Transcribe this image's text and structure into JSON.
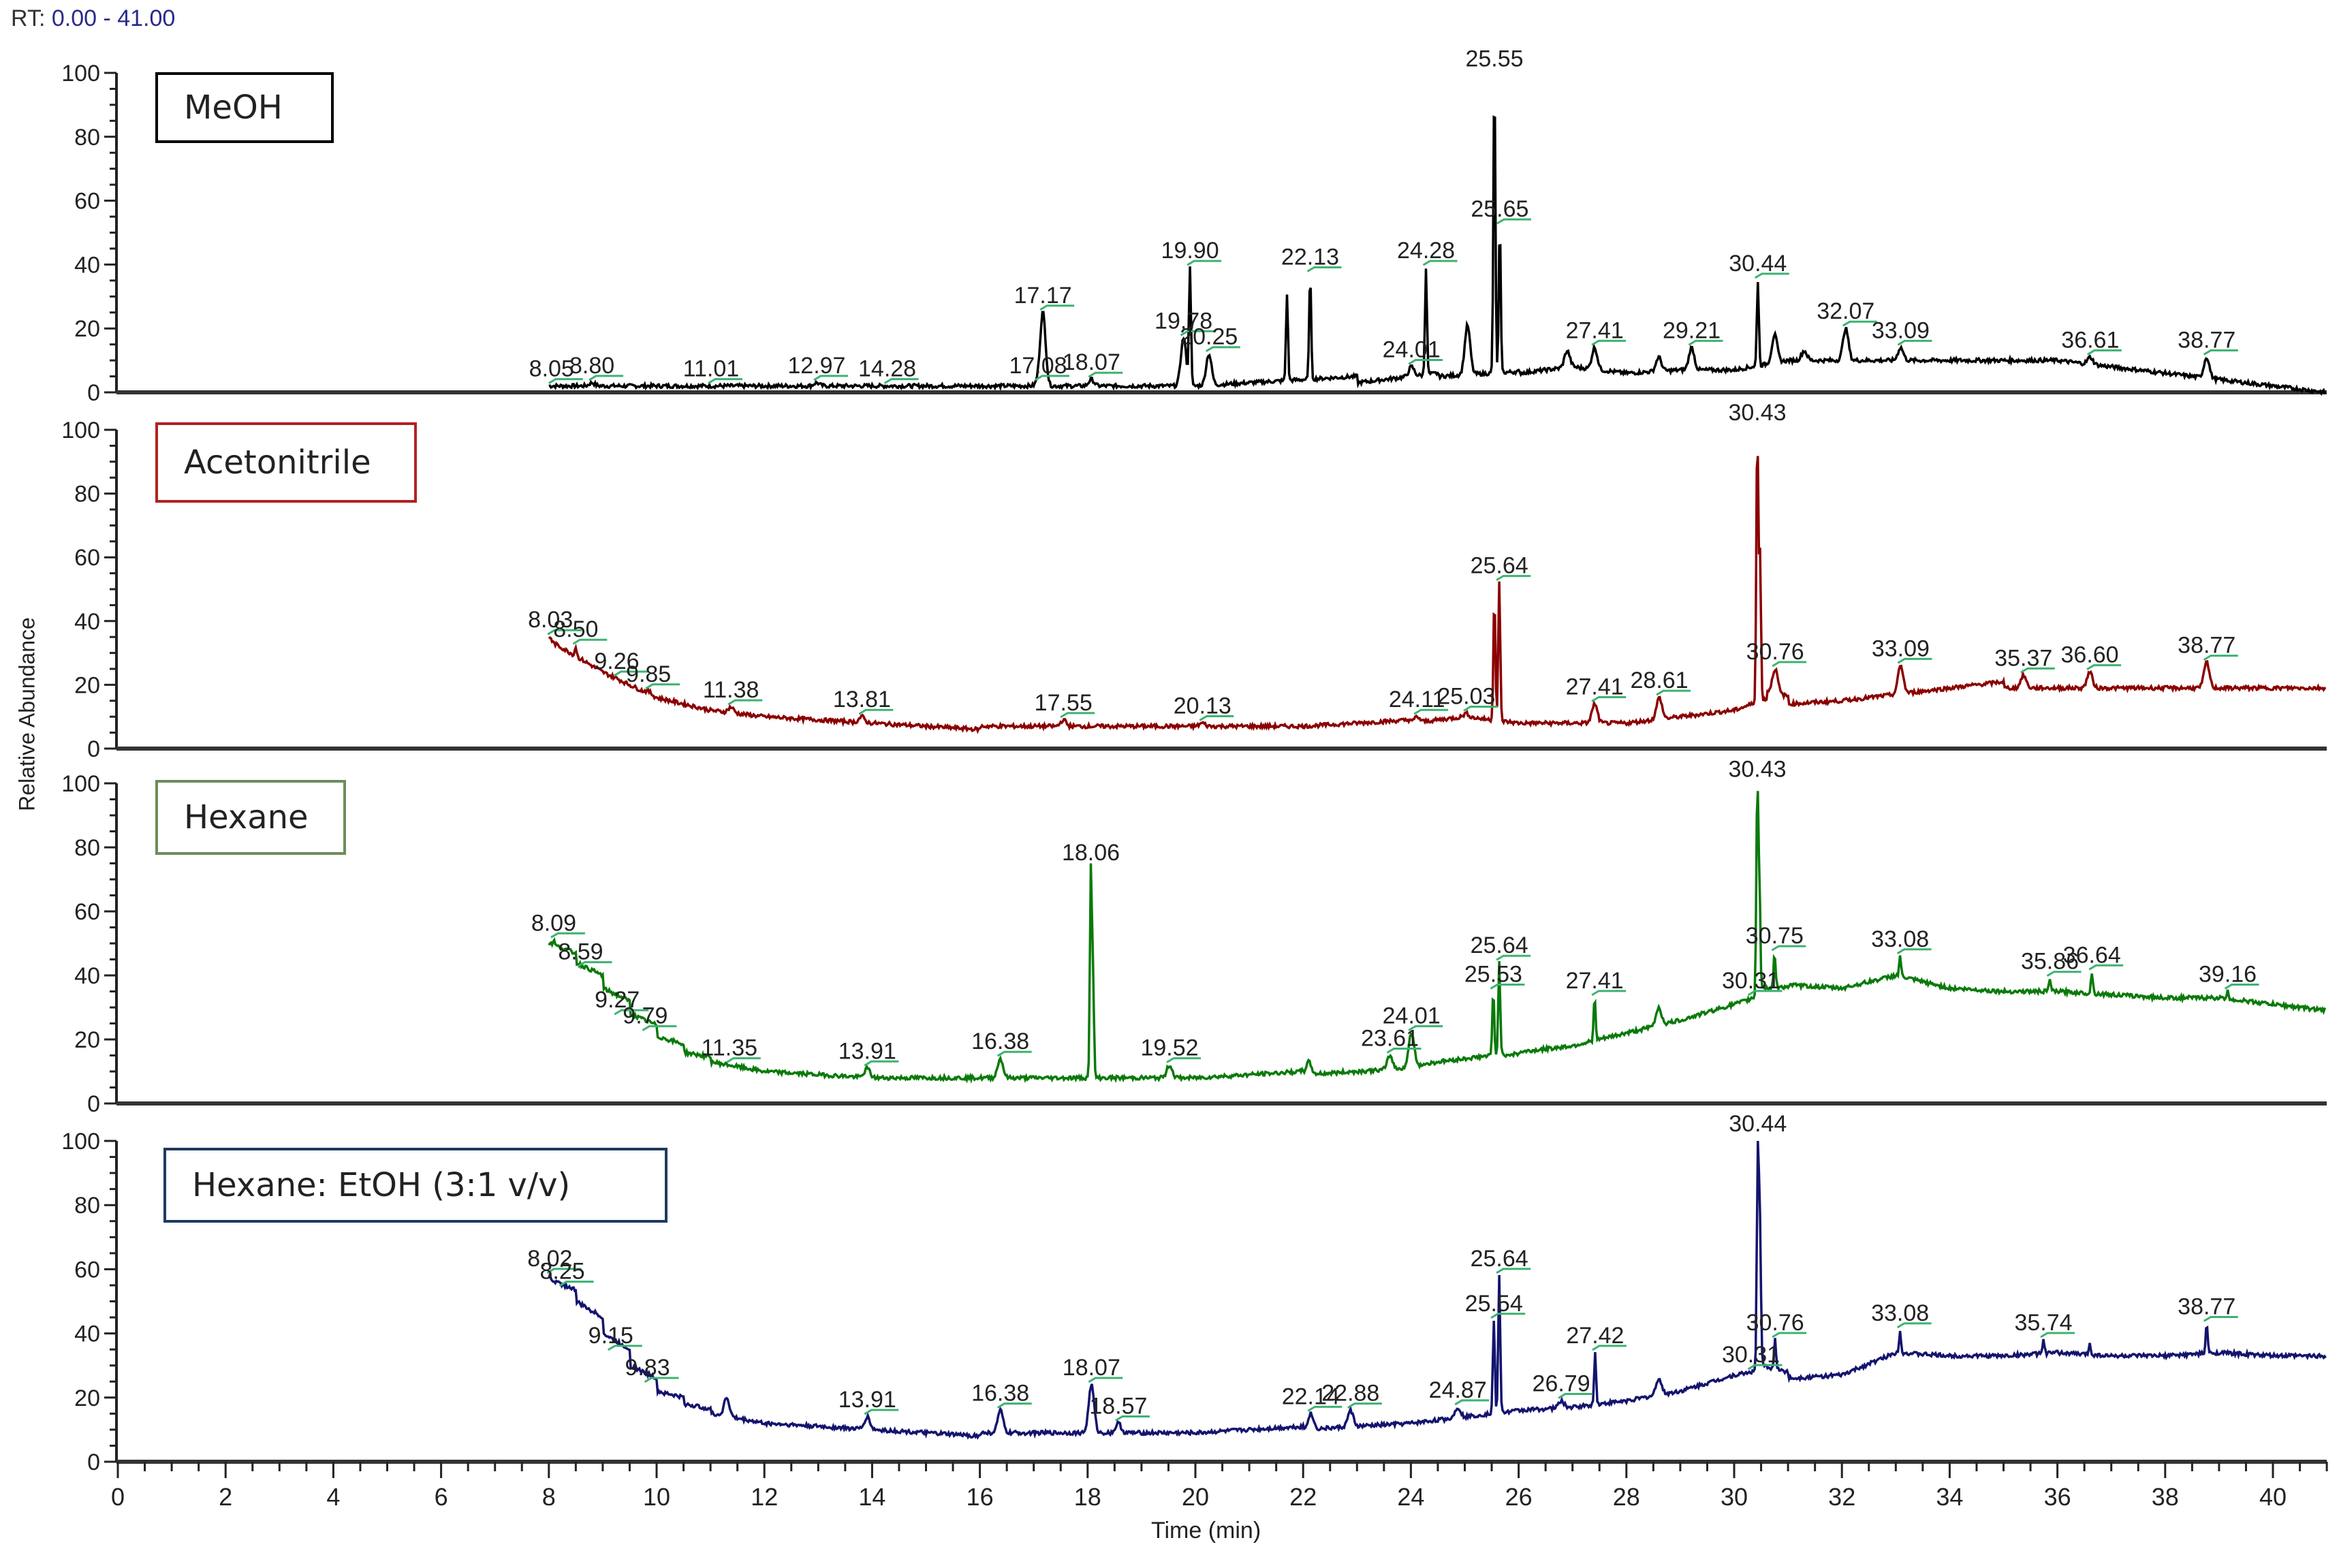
{
  "header": {
    "rt_label": "RT:",
    "rt_range": "0.00 - 41.00"
  },
  "axes": {
    "ylabel": "Relative Abundance",
    "xlabel": "Time (min)",
    "x_ticks": [
      "0",
      "2",
      "4",
      "6",
      "8",
      "10",
      "12",
      "14",
      "16",
      "18",
      "20",
      "22",
      "24",
      "26",
      "28",
      "30",
      "32",
      "34",
      "36",
      "38",
      "40"
    ],
    "y_ticks": [
      "0",
      "20",
      "40",
      "60",
      "80",
      "100"
    ]
  },
  "colors": {
    "meoh": "#000000",
    "acetonitrile": "#8b0000",
    "hexane": "#0a7a0a",
    "hexane_etoh": "#14146e",
    "annotation_bracket": "#3cb371",
    "axis": "#222222"
  },
  "chart_data": {
    "type": "line",
    "title": "RT: 0.00 - 41.00",
    "xlabel": "Time (min)",
    "ylabel": "Relative Abundance",
    "xlim": [
      0,
      41
    ],
    "ylim": [
      0,
      100
    ],
    "grid": false,
    "layout": "4 stacked chromatogram panels sharing x-axis",
    "panels": [
      {
        "name": "MeOH",
        "color": "#000000",
        "legend_border": "#000000",
        "baseline": [
          [
            8.0,
            2
          ],
          [
            12,
            2
          ],
          [
            17,
            2
          ],
          [
            20,
            2
          ],
          [
            23,
            3
          ],
          [
            24.5,
            5
          ],
          [
            26,
            6
          ],
          [
            27,
            8
          ],
          [
            28,
            6
          ],
          [
            29,
            7
          ],
          [
            30,
            7
          ],
          [
            31,
            10
          ],
          [
            33,
            10
          ],
          [
            36,
            10
          ],
          [
            41,
            8
          ]
        ],
        "peaks": [
          {
            "rt": 8.05,
            "label": "8.05",
            "height": 2
          },
          {
            "rt": 8.8,
            "label": "8.80",
            "height": 3
          },
          {
            "rt": 11.01,
            "label": "11.01",
            "height": 2
          },
          {
            "rt": 12.97,
            "label": "12.97",
            "height": 3
          },
          {
            "rt": 14.28,
            "label": "14.28",
            "height": 2
          },
          {
            "rt": 17.08,
            "label": "17.08",
            "height": 3
          },
          {
            "rt": 17.17,
            "label": "17.17",
            "height": 25
          },
          {
            "rt": 18.07,
            "label": "18.07",
            "height": 4
          },
          {
            "rt": 19.78,
            "label": "19.78",
            "height": 17
          },
          {
            "rt": 19.9,
            "label": "19.90",
            "height": 39
          },
          {
            "rt": 20.25,
            "label": "20.25",
            "height": 12
          },
          {
            "rt": 21.7,
            "label": "",
            "height": 31
          },
          {
            "rt": 22.13,
            "label": "22.13",
            "height": 37
          },
          {
            "rt": 24.01,
            "label": "24.01",
            "height": 8
          },
          {
            "rt": 24.28,
            "label": "24.28",
            "height": 39
          },
          {
            "rt": 25.05,
            "label": "",
            "height": 21
          },
          {
            "rt": 25.55,
            "label": "25.55",
            "height": 99
          },
          {
            "rt": 25.65,
            "label": "25.65",
            "height": 52
          },
          {
            "rt": 26.9,
            "label": "",
            "height": 13
          },
          {
            "rt": 27.41,
            "label": "27.41",
            "height": 14
          },
          {
            "rt": 28.6,
            "label": "",
            "height": 11
          },
          {
            "rt": 29.21,
            "label": "29.21",
            "height": 14
          },
          {
            "rt": 30.44,
            "label": "30.44",
            "height": 35
          },
          {
            "rt": 30.75,
            "label": "",
            "height": 18
          },
          {
            "rt": 31.3,
            "label": "",
            "height": 13
          },
          {
            "rt": 32.07,
            "label": "32.07",
            "height": 20
          },
          {
            "rt": 33.09,
            "label": "33.09",
            "height": 14
          },
          {
            "rt": 36.61,
            "label": "36.61",
            "height": 11
          },
          {
            "rt": 38.77,
            "label": "38.77",
            "height": 11
          }
        ]
      },
      {
        "name": "Acetonitrile",
        "color": "#8b0000",
        "legend_border": "#b22222",
        "baseline": [
          [
            8.0,
            34
          ],
          [
            9,
            24
          ],
          [
            10,
            16
          ],
          [
            11,
            12
          ],
          [
            12,
            10
          ],
          [
            13,
            9
          ],
          [
            14,
            8
          ],
          [
            16,
            7
          ],
          [
            20,
            7
          ],
          [
            22,
            7
          ],
          [
            24,
            8
          ],
          [
            25,
            10
          ],
          [
            26,
            8
          ],
          [
            28,
            8
          ],
          [
            29,
            10
          ],
          [
            30,
            12
          ],
          [
            30.6,
            18
          ],
          [
            31,
            14
          ],
          [
            32,
            15
          ],
          [
            33,
            17
          ],
          [
            35,
            19
          ],
          [
            38,
            19
          ],
          [
            41,
            19
          ]
        ],
        "peaks": [
          {
            "rt": 8.03,
            "label": "8.03",
            "height": 35
          },
          {
            "rt": 8.5,
            "label": "8.50",
            "height": 32
          },
          {
            "rt": 9.26,
            "label": "9.26",
            "height": 22
          },
          {
            "rt": 9.85,
            "label": "9.85",
            "height": 18
          },
          {
            "rt": 11.38,
            "label": "11.38",
            "height": 13
          },
          {
            "rt": 13.81,
            "label": "13.81",
            "height": 10
          },
          {
            "rt": 17.55,
            "label": "17.55",
            "height": 9
          },
          {
            "rt": 20.13,
            "label": "20.13",
            "height": 8
          },
          {
            "rt": 24.11,
            "label": "24.11",
            "height": 10
          },
          {
            "rt": 25.03,
            "label": "25.03",
            "height": 11
          },
          {
            "rt": 25.55,
            "label": "",
            "height": 48
          },
          {
            "rt": 25.64,
            "label": "25.64",
            "height": 52
          },
          {
            "rt": 27.41,
            "label": "27.41",
            "height": 14
          },
          {
            "rt": 28.61,
            "label": "28.61",
            "height": 16
          },
          {
            "rt": 30.43,
            "label": "30.43",
            "height": 100
          },
          {
            "rt": 30.48,
            "label": "",
            "height": 61
          },
          {
            "rt": 30.76,
            "label": "30.76",
            "height": 25
          },
          {
            "rt": 33.09,
            "label": "33.09",
            "height": 26
          },
          {
            "rt": 35.37,
            "label": "35.37",
            "height": 23
          },
          {
            "rt": 36.6,
            "label": "36.60",
            "height": 24
          },
          {
            "rt": 38.77,
            "label": "38.77",
            "height": 27
          }
        ]
      },
      {
        "name": "Hexane",
        "color": "#0a7a0a",
        "legend_border": "#6b8e5a",
        "baseline": [
          [
            8.0,
            50
          ],
          [
            8.5,
            44
          ],
          [
            9,
            36
          ],
          [
            9.5,
            28
          ],
          [
            10,
            21
          ],
          [
            10.5,
            16
          ],
          [
            11,
            13
          ],
          [
            12,
            10
          ],
          [
            13,
            9
          ],
          [
            14,
            8
          ],
          [
            16,
            8
          ],
          [
            18,
            8
          ],
          [
            20,
            8
          ],
          [
            22,
            9
          ],
          [
            23.5,
            10
          ],
          [
            24.5,
            13
          ],
          [
            25.5,
            15
          ],
          [
            26,
            16
          ],
          [
            27,
            18
          ],
          [
            28,
            22
          ],
          [
            29,
            26
          ],
          [
            30,
            31
          ],
          [
            30.5,
            36
          ],
          [
            31,
            37
          ],
          [
            32,
            36
          ],
          [
            33,
            40
          ],
          [
            34,
            36
          ],
          [
            35,
            35
          ],
          [
            36,
            35
          ],
          [
            37,
            34
          ],
          [
            38,
            33
          ],
          [
            39,
            33
          ],
          [
            40,
            31
          ],
          [
            41,
            29
          ]
        ],
        "peaks": [
          {
            "rt": 8.09,
            "label": "8.09",
            "height": 51
          },
          {
            "rt": 8.59,
            "label": "8.59",
            "height": 42
          },
          {
            "rt": 9.27,
            "label": "9.27",
            "height": 27
          },
          {
            "rt": 9.79,
            "label": "9.79",
            "height": 22
          },
          {
            "rt": 11.35,
            "label": "11.35",
            "height": 12
          },
          {
            "rt": 13.91,
            "label": "13.91",
            "height": 11
          },
          {
            "rt": 16.38,
            "label": "16.38",
            "height": 14
          },
          {
            "rt": 18.06,
            "label": "18.06",
            "height": 73
          },
          {
            "rt": 18.1,
            "label": "",
            "height": 38
          },
          {
            "rt": 19.52,
            "label": "19.52",
            "height": 12
          },
          {
            "rt": 22.1,
            "label": "",
            "height": 13
          },
          {
            "rt": 23.61,
            "label": "23.61",
            "height": 15
          },
          {
            "rt": 24.01,
            "label": "24.01",
            "height": 22
          },
          {
            "rt": 25.53,
            "label": "25.53",
            "height": 35
          },
          {
            "rt": 25.64,
            "label": "25.64",
            "height": 44
          },
          {
            "rt": 27.41,
            "label": "27.41",
            "height": 33
          },
          {
            "rt": 28.6,
            "label": "",
            "height": 30
          },
          {
            "rt": 30.31,
            "label": "30.31",
            "height": 33
          },
          {
            "rt": 30.43,
            "label": "30.43",
            "height": 99
          },
          {
            "rt": 30.47,
            "label": "",
            "height": 66
          },
          {
            "rt": 30.75,
            "label": "30.75",
            "height": 47
          },
          {
            "rt": 33.08,
            "label": "33.08",
            "height": 46
          },
          {
            "rt": 35.86,
            "label": "35.86",
            "height": 39
          },
          {
            "rt": 36.64,
            "label": "36.64",
            "height": 41
          },
          {
            "rt": 39.16,
            "label": "39.16",
            "height": 35
          }
        ]
      },
      {
        "name": "Hexane: EtOH (3:1 v/v)",
        "color": "#14146e",
        "legend_border": "#1f3a5f",
        "baseline": [
          [
            8.0,
            57
          ],
          [
            8.5,
            50
          ],
          [
            9,
            40
          ],
          [
            9.5,
            30
          ],
          [
            10,
            22
          ],
          [
            10.5,
            18
          ],
          [
            11,
            15
          ],
          [
            12,
            12
          ],
          [
            13,
            11
          ],
          [
            14,
            10
          ],
          [
            16,
            9
          ],
          [
            18,
            9
          ],
          [
            20,
            9
          ],
          [
            22,
            10
          ],
          [
            23,
            11
          ],
          [
            24,
            12
          ],
          [
            25,
            14
          ],
          [
            26,
            16
          ],
          [
            27,
            17
          ],
          [
            28,
            19
          ],
          [
            29,
            22
          ],
          [
            30,
            27
          ],
          [
            30.5,
            30
          ],
          [
            31,
            26
          ],
          [
            32,
            27
          ],
          [
            33,
            34
          ],
          [
            34,
            33
          ],
          [
            35,
            33
          ],
          [
            36,
            34
          ],
          [
            37,
            33
          ],
          [
            38,
            33
          ],
          [
            39,
            34
          ],
          [
            40,
            33
          ],
          [
            41,
            33
          ]
        ],
        "peaks": [
          {
            "rt": 8.02,
            "label": "8.02",
            "height": 58
          },
          {
            "rt": 8.25,
            "label": "8.25",
            "height": 54
          },
          {
            "rt": 9.15,
            "label": "9.15",
            "height": 34
          },
          {
            "rt": 9.83,
            "label": "9.83",
            "height": 24
          },
          {
            "rt": 11.3,
            "label": "",
            "height": 20
          },
          {
            "rt": 13.91,
            "label": "13.91",
            "height": 14
          },
          {
            "rt": 16.38,
            "label": "16.38",
            "height": 16
          },
          {
            "rt": 18.07,
            "label": "18.07",
            "height": 24
          },
          {
            "rt": 18.57,
            "label": "18.57",
            "height": 12
          },
          {
            "rt": 22.14,
            "label": "22.14",
            "height": 15
          },
          {
            "rt": 22.88,
            "label": "22.88",
            "height": 16
          },
          {
            "rt": 24.87,
            "label": "24.87",
            "height": 17
          },
          {
            "rt": 25.54,
            "label": "25.54",
            "height": 44
          },
          {
            "rt": 25.64,
            "label": "25.64",
            "height": 58
          },
          {
            "rt": 26.79,
            "label": "26.79",
            "height": 19
          },
          {
            "rt": 27.42,
            "label": "27.42",
            "height": 34
          },
          {
            "rt": 28.6,
            "label": "",
            "height": 26
          },
          {
            "rt": 30.31,
            "label": "30.31",
            "height": 28
          },
          {
            "rt": 30.44,
            "label": "30.44",
            "height": 100
          },
          {
            "rt": 30.48,
            "label": "",
            "height": 72
          },
          {
            "rt": 30.76,
            "label": "30.76",
            "height": 38
          },
          {
            "rt": 33.08,
            "label": "33.08",
            "height": 41
          },
          {
            "rt": 35.74,
            "label": "35.74",
            "height": 38
          },
          {
            "rt": 36.6,
            "label": "",
            "height": 37
          },
          {
            "rt": 38.77,
            "label": "38.77",
            "height": 43
          }
        ]
      }
    ]
  }
}
